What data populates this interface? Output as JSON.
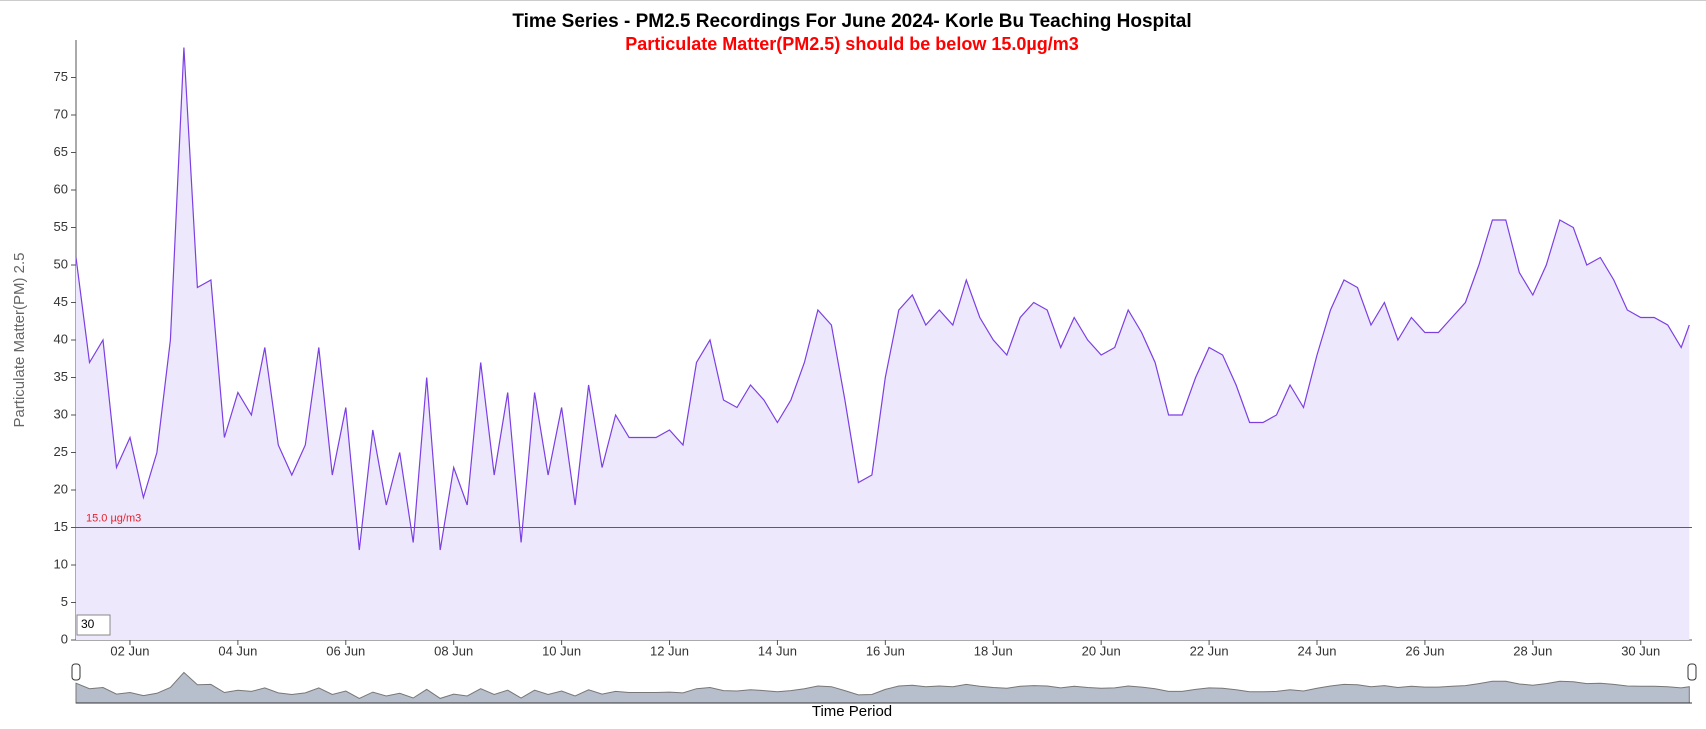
{
  "chart_data": {
    "type": "line",
    "title": "Time Series - PM2.5 Recordings For June 2024- Korle Bu Teaching Hospital",
    "subtitle": "Particulate Matter(PM2.5) should be below 15.0µg/m3",
    "ylabel": "Particulate Matter(PM) 2.5",
    "xlabel": "Time Period",
    "roll_period": 30,
    "threshold": {
      "value": 15,
      "label": "15.0 µg/m3",
      "color": "#e8202a"
    },
    "x": [
      1,
      1.25,
      1.5,
      1.75,
      2,
      2.25,
      2.5,
      2.75,
      3,
      3.25,
      3.5,
      3.75,
      4,
      4.25,
      4.5,
      4.75,
      5,
      5.25,
      5.5,
      5.75,
      6,
      6.25,
      6.5,
      6.75,
      7,
      7.25,
      7.5,
      7.75,
      8,
      8.25,
      8.5,
      8.75,
      9,
      9.25,
      9.5,
      9.75,
      10,
      10.25,
      10.5,
      10.75,
      11,
      11.25,
      11.5,
      11.75,
      12,
      12.25,
      12.5,
      12.75,
      13,
      13.25,
      13.5,
      13.75,
      14,
      14.25,
      14.5,
      14.75,
      15,
      15.25,
      15.5,
      15.75,
      16,
      16.25,
      16.5,
      16.75,
      17,
      17.25,
      17.5,
      17.75,
      18,
      18.25,
      18.5,
      18.75,
      19,
      19.25,
      19.5,
      19.75,
      20,
      20.25,
      20.5,
      20.75,
      21,
      21.25,
      21.5,
      21.75,
      22,
      22.25,
      22.5,
      22.75,
      23,
      23.25,
      23.5,
      23.75,
      24,
      24.25,
      24.5,
      24.75,
      25,
      25.25,
      25.5,
      25.75,
      26,
      26.25,
      26.5,
      26.75,
      27,
      27.25,
      27.5,
      27.75,
      28,
      28.25,
      28.5,
      28.75,
      29,
      29.25,
      29.5,
      29.75,
      30,
      30.25,
      30.5,
      30.75,
      30.9
    ],
    "series": [
      {
        "color": "#7b3fe4",
        "fill_color": "#eee8fd",
        "values": [
          51,
          37,
          40,
          23,
          27,
          19,
          25,
          40,
          79,
          47,
          48,
          27,
          33,
          30,
          39,
          26,
          22,
          26,
          39,
          22,
          31,
          12,
          28,
          18,
          25,
          13,
          35,
          12,
          23,
          18,
          37,
          22,
          33,
          13,
          33,
          22,
          31,
          18,
          34,
          23,
          30,
          27,
          27,
          27,
          28,
          26,
          37,
          40,
          32,
          31,
          34,
          32,
          29,
          32,
          37,
          44,
          42,
          32,
          21,
          22,
          35,
          44,
          46,
          42,
          44,
          42,
          48,
          43,
          40,
          38,
          43,
          45,
          44,
          39,
          43,
          40,
          38,
          39,
          44,
          41,
          37,
          30,
          30,
          35,
          39,
          38,
          34,
          29,
          29,
          30,
          34,
          31,
          38,
          44,
          48,
          47,
          42,
          45,
          40,
          43,
          41,
          41,
          43,
          45,
          50,
          56,
          56,
          49,
          46,
          50,
          56,
          55,
          50,
          51,
          48,
          44,
          43,
          43,
          42,
          39,
          42
        ]
      }
    ],
    "xlim": [
      1,
      30.95
    ],
    "xticks": [
      {
        "value": 2,
        "label": "02 Jun"
      },
      {
        "value": 4,
        "label": "04 Jun"
      },
      {
        "value": 6,
        "label": "06 Jun"
      },
      {
        "value": 8,
        "label": "08 Jun"
      },
      {
        "value": 10,
        "label": "10 Jun"
      },
      {
        "value": 12,
        "label": "12 Jun"
      },
      {
        "value": 14,
        "label": "14 Jun"
      },
      {
        "value": 16,
        "label": "16 Jun"
      },
      {
        "value": 18,
        "label": "18 Jun"
      },
      {
        "value": 20,
        "label": "20 Jun"
      },
      {
        "value": 22,
        "label": "22 Jun"
      },
      {
        "value": 24,
        "label": "24 Jun"
      },
      {
        "value": 26,
        "label": "26 Jun"
      },
      {
        "value": 28,
        "label": "28 Jun"
      },
      {
        "value": 30,
        "label": "30 Jun"
      }
    ],
    "ylim": [
      0,
      80
    ],
    "yticks": [
      0,
      5,
      10,
      15,
      20,
      25,
      30,
      35,
      40,
      45,
      50,
      55,
      60,
      65,
      70,
      75
    ]
  }
}
